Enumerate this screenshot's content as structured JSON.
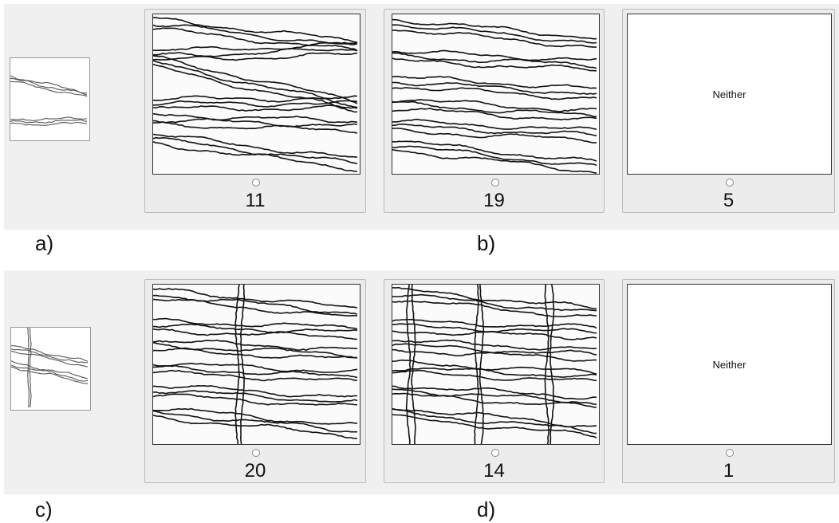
{
  "rows": [
    {
      "options": [
        {
          "count": 11
        },
        {
          "count": 19
        },
        {
          "label": "Neither",
          "count": 5
        }
      ]
    },
    {
      "options": [
        {
          "count": 20
        },
        {
          "count": 14
        },
        {
          "label": "Neither",
          "count": 1
        }
      ]
    }
  ],
  "captions": [
    "a)",
    "b)",
    "c)",
    "d)"
  ]
}
